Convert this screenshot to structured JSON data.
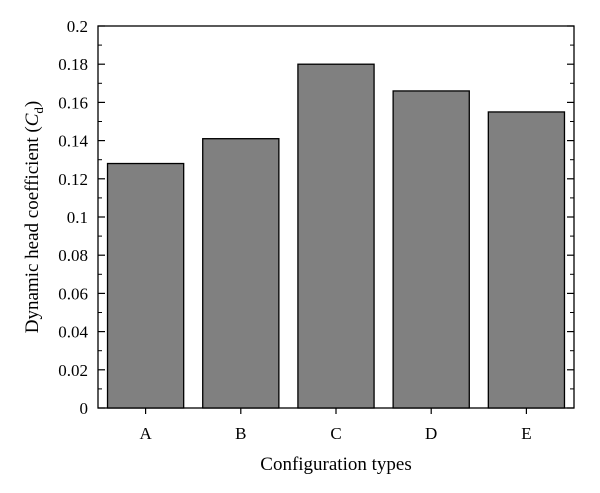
{
  "chart_data": {
    "type": "bar",
    "categories": [
      "A",
      "B",
      "C",
      "D",
      "E"
    ],
    "values": [
      0.128,
      0.141,
      0.18,
      0.166,
      0.155
    ],
    "xlabel": "Configuration types",
    "ylabel": {
      "prefix": "Dynamic head coefficient (",
      "symbol": "C",
      "subscript": "d",
      "suffix": ")"
    },
    "ylim": [
      0,
      0.2
    ],
    "yticks": [
      "0",
      "0.02",
      "0.04",
      "0.06",
      "0.08",
      "0.1",
      "0.12",
      "0.14",
      "0.16",
      "0.18",
      "0.2"
    ],
    "ytick_values": [
      0,
      0.02,
      0.04,
      0.06,
      0.08,
      0.1,
      0.12,
      0.14,
      0.16,
      0.18,
      0.2
    ],
    "bar_color": "#808080",
    "edge_color": "#000000",
    "grid": false,
    "legend": "none"
  }
}
